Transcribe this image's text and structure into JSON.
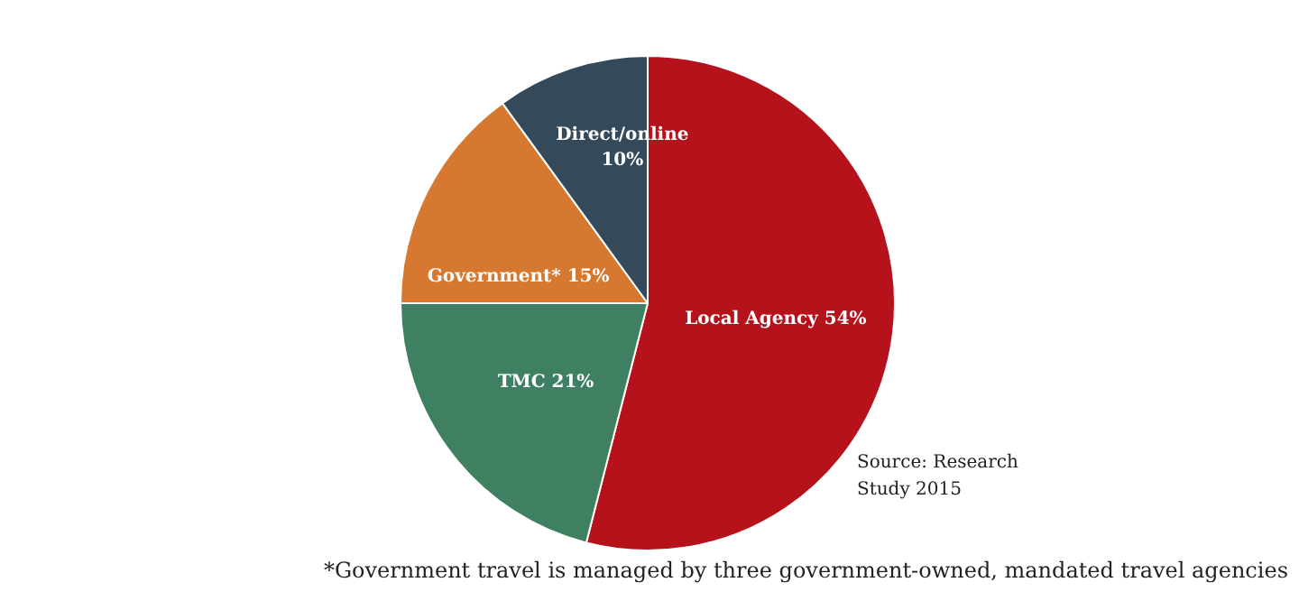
{
  "chart_data": {
    "type": "pie",
    "categories": [
      "Local Agency",
      "TMC",
      "Government*",
      "Direct/online"
    ],
    "values": [
      54,
      21,
      15,
      10
    ],
    "colors": [
      "#b5121b",
      "#3f7f62",
      "#d6782f",
      "#34495a"
    ],
    "value_labels": [
      "54%",
      "21%",
      "15%",
      "10%"
    ],
    "annotations": [
      "Source: Research Study 2015",
      "*Government travel is managed by three government-owned, mandated travel agencies"
    ]
  }
}
